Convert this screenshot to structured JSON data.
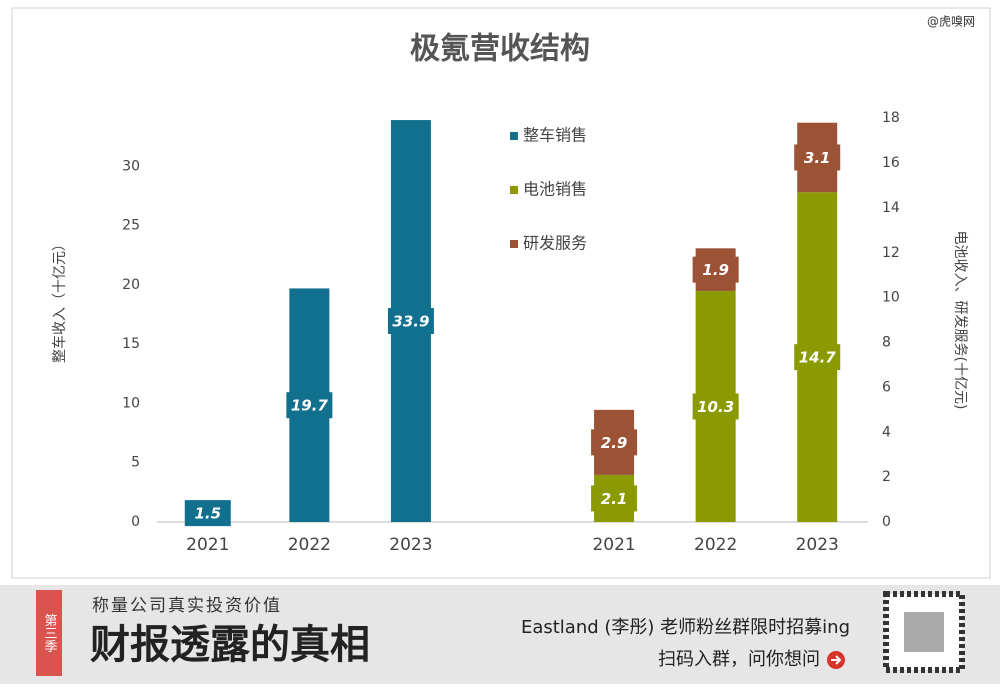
{
  "watermark": "@虎嗅网",
  "chart_data": {
    "type": "bar",
    "title": "极氪营收结构",
    "categories": [
      "2021",
      "2022",
      "2023",
      null,
      "2021",
      "2022",
      "2023"
    ],
    "series": [
      {
        "name": "整车销售",
        "color": "#12708f",
        "values": [
          1.5,
          19.7,
          33.9,
          null,
          null,
          null,
          null
        ]
      },
      {
        "name": "电池销售",
        "color": "#8a9a00",
        "axis": "y2",
        "values": [
          null,
          null,
          null,
          null,
          2.1,
          10.3,
          14.7
        ]
      },
      {
        "name": "研发服务",
        "color": "#9c5235",
        "axis": "y2",
        "values": [
          null,
          null,
          null,
          null,
          2.9,
          1.9,
          3.1
        ]
      }
    ],
    "stacked": true,
    "ylabel": "整车收入（十亿元）",
    "y2label": "电池收入、研发服务(十亿元)",
    "ylim": [
      0,
      35
    ],
    "yticks": [
      0,
      5,
      10,
      15,
      20,
      25,
      30
    ],
    "y2lim": [
      0,
      18.5
    ],
    "y2ticks": [
      0,
      2,
      4,
      6,
      8,
      10,
      12,
      14,
      16,
      18
    ],
    "legend": "top-center"
  },
  "banner": {
    "badge": "第三季",
    "slogan": "称量公司真实投资价值",
    "headline": "财报透露的真相",
    "recruit": "Eastland (李彤) 老师粉丝群限时招募ing",
    "cta": "扫码入群，问你想问"
  }
}
